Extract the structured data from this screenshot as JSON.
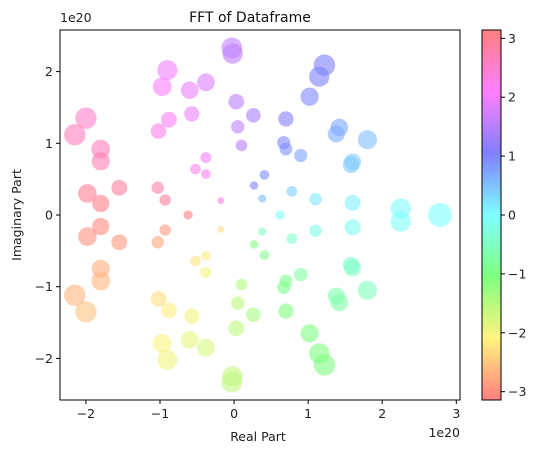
{
  "chart_data": {
    "type": "scatter",
    "title": "FFT of Dataframe",
    "xlabel": "Real Part",
    "ylabel": "Imaginary Part",
    "x_offset_text": "1e20",
    "y_offset_text": "1e20",
    "xlim": [
      -2.35,
      3.05
    ],
    "ylim": [
      -2.58,
      2.58
    ],
    "x_ticks": [
      -2,
      -1,
      0,
      1,
      2,
      3
    ],
    "y_ticks": [
      -2,
      -1,
      0,
      1,
      2
    ],
    "x_tick_labels": [
      "−2",
      "−1",
      "0",
      "1",
      "2",
      "3"
    ],
    "y_tick_labels": [
      "−2",
      "−1",
      "0",
      "1",
      "2"
    ],
    "colorbar": {
      "colormap": "spring-rainbow",
      "range": [
        -3.14159,
        3.14159
      ],
      "ticks": [
        -3,
        -2,
        -1,
        0,
        1,
        2,
        3
      ],
      "tick_labels": [
        "−3",
        "−2",
        "−1",
        "0",
        "1",
        "2",
        "3"
      ],
      "stops": [
        "#ff7f7f",
        "#fff47f",
        "#7fff7f",
        "#7fffff",
        "#7f7fff",
        "#ff7fff",
        "#ff7f7f"
      ]
    },
    "grid": false,
    "points": [
      {
        "x": 2.78,
        "y": 0.0
      },
      {
        "x": 2.25,
        "y": 0.09
      },
      {
        "x": 2.25,
        "y": -0.09
      },
      {
        "x": 1.6,
        "y": 0.17
      },
      {
        "x": 1.6,
        "y": -0.17
      },
      {
        "x": 1.1,
        "y": 0.22
      },
      {
        "x": 1.1,
        "y": -0.22
      },
      {
        "x": 0.62,
        "y": 0.0
      },
      {
        "x": 0.78,
        "y": 0.33
      },
      {
        "x": 0.78,
        "y": -0.33
      },
      {
        "x": 1.58,
        "y": 0.7
      },
      {
        "x": 1.58,
        "y": -0.7
      },
      {
        "x": 1.6,
        "y": 0.74
      },
      {
        "x": 1.6,
        "y": -0.74
      },
      {
        "x": 1.8,
        "y": 1.05
      },
      {
        "x": 1.8,
        "y": -1.05
      },
      {
        "x": 1.42,
        "y": 1.22
      },
      {
        "x": 1.42,
        "y": -1.22
      },
      {
        "x": 1.38,
        "y": 1.13
      },
      {
        "x": 1.38,
        "y": -1.13
      },
      {
        "x": 0.9,
        "y": 0.83
      },
      {
        "x": 0.9,
        "y": -0.83
      },
      {
        "x": 0.7,
        "y": 0.92
      },
      {
        "x": 0.7,
        "y": -0.92
      },
      {
        "x": 0.67,
        "y": 1.01
      },
      {
        "x": 0.67,
        "y": -1.01
      },
      {
        "x": 0.7,
        "y": 1.34
      },
      {
        "x": 0.7,
        "y": -1.34
      },
      {
        "x": 1.02,
        "y": 1.65
      },
      {
        "x": 1.02,
        "y": -1.65
      },
      {
        "x": 1.15,
        "y": 1.93
      },
      {
        "x": 1.15,
        "y": -1.93
      },
      {
        "x": 1.22,
        "y": 2.09
      },
      {
        "x": 1.22,
        "y": -2.09
      },
      {
        "x": 0.41,
        "y": 0.56
      },
      {
        "x": 0.41,
        "y": -0.56
      },
      {
        "x": 0.27,
        "y": 0.41
      },
      {
        "x": 0.27,
        "y": -0.41
      },
      {
        "x": 0.38,
        "y": 0.23
      },
      {
        "x": 0.38,
        "y": -0.23
      },
      {
        "x": 0.26,
        "y": 1.39
      },
      {
        "x": 0.26,
        "y": -1.39
      },
      {
        "x": 0.1,
        "y": 0.97
      },
      {
        "x": 0.1,
        "y": -0.97
      },
      {
        "x": 0.05,
        "y": 1.23
      },
      {
        "x": 0.05,
        "y": -1.23
      },
      {
        "x": 0.03,
        "y": 1.58
      },
      {
        "x": 0.03,
        "y": -1.58
      },
      {
        "x": -0.02,
        "y": 2.25
      },
      {
        "x": -0.02,
        "y": -2.25
      },
      {
        "x": -0.03,
        "y": 2.33
      },
      {
        "x": -0.03,
        "y": -2.33
      },
      {
        "x": -0.18,
        "y": 0.2
      },
      {
        "x": -0.18,
        "y": -0.2
      },
      {
        "x": -0.38,
        "y": 0.8
      },
      {
        "x": -0.38,
        "y": -0.8
      },
      {
        "x": -0.38,
        "y": 0.57
      },
      {
        "x": -0.38,
        "y": -0.57
      },
      {
        "x": -0.52,
        "y": 0.64
      },
      {
        "x": -0.52,
        "y": -0.64
      },
      {
        "x": -0.38,
        "y": 1.85
      },
      {
        "x": -0.38,
        "y": -1.85
      },
      {
        "x": -0.57,
        "y": 1.41
      },
      {
        "x": -0.57,
        "y": -1.41
      },
      {
        "x": -0.6,
        "y": 1.74
      },
      {
        "x": -0.6,
        "y": -1.74
      },
      {
        "x": -0.9,
        "y": 2.02
      },
      {
        "x": -0.9,
        "y": -2.02
      },
      {
        "x": -0.97,
        "y": 1.79
      },
      {
        "x": -0.97,
        "y": -1.79
      },
      {
        "x": -0.88,
        "y": 1.33
      },
      {
        "x": -0.88,
        "y": -1.33
      },
      {
        "x": -1.02,
        "y": 1.17
      },
      {
        "x": -1.02,
        "y": -1.17
      },
      {
        "x": -0.62,
        "y": 0.0
      },
      {
        "x": -0.93,
        "y": 0.21
      },
      {
        "x": -0.93,
        "y": -0.21
      },
      {
        "x": -1.03,
        "y": 0.38
      },
      {
        "x": -1.03,
        "y": -0.38
      },
      {
        "x": -1.55,
        "y": 0.38
      },
      {
        "x": -1.55,
        "y": -0.38
      },
      {
        "x": -1.98,
        "y": 0.3
      },
      {
        "x": -1.98,
        "y": -0.3
      },
      {
        "x": -1.8,
        "y": 0.16
      },
      {
        "x": -1.8,
        "y": -0.16
      },
      {
        "x": -1.8,
        "y": 0.75
      },
      {
        "x": -1.8,
        "y": -0.75
      },
      {
        "x": -1.8,
        "y": 0.92
      },
      {
        "x": -1.8,
        "y": -0.92
      },
      {
        "x": -2.0,
        "y": 1.35
      },
      {
        "x": -2.0,
        "y": -1.35
      },
      {
        "x": -2.15,
        "y": 1.12
      },
      {
        "x": -2.15,
        "y": -1.12
      }
    ]
  }
}
